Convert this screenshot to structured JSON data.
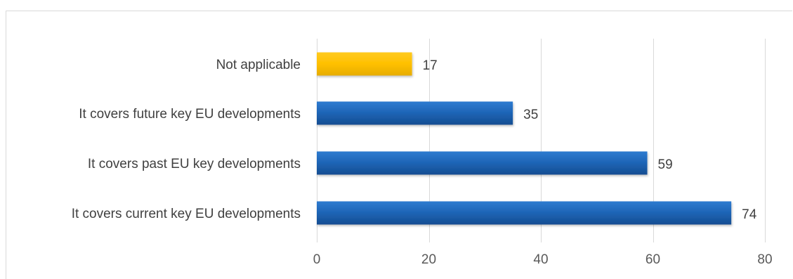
{
  "chart_data": {
    "type": "bar",
    "orientation": "horizontal",
    "categories": [
      "Not applicable",
      "It covers future key EU developments",
      "It covers past EU key developments",
      "It covers current key EU developments"
    ],
    "values": [
      17,
      35,
      59,
      74
    ],
    "bar_colors": [
      "#FFC000",
      "#1F66B8",
      "#1F66B8",
      "#1F66B8"
    ],
    "data_labels": [
      "17",
      "35",
      "59",
      "74"
    ],
    "xlim": [
      0,
      80
    ],
    "x_ticks": [
      0,
      20,
      40,
      60,
      80
    ],
    "x_tick_labels": [
      "0",
      "20",
      "40",
      "60",
      "80"
    ],
    "grid": "vertical",
    "legend": "none",
    "title": "",
    "xlabel": "",
    "ylabel": ""
  },
  "colors": {
    "primary_bar": "#1F66B8",
    "highlight_bar": "#FFC000",
    "gridline": "#d9d9d9",
    "label_text": "#404040"
  }
}
